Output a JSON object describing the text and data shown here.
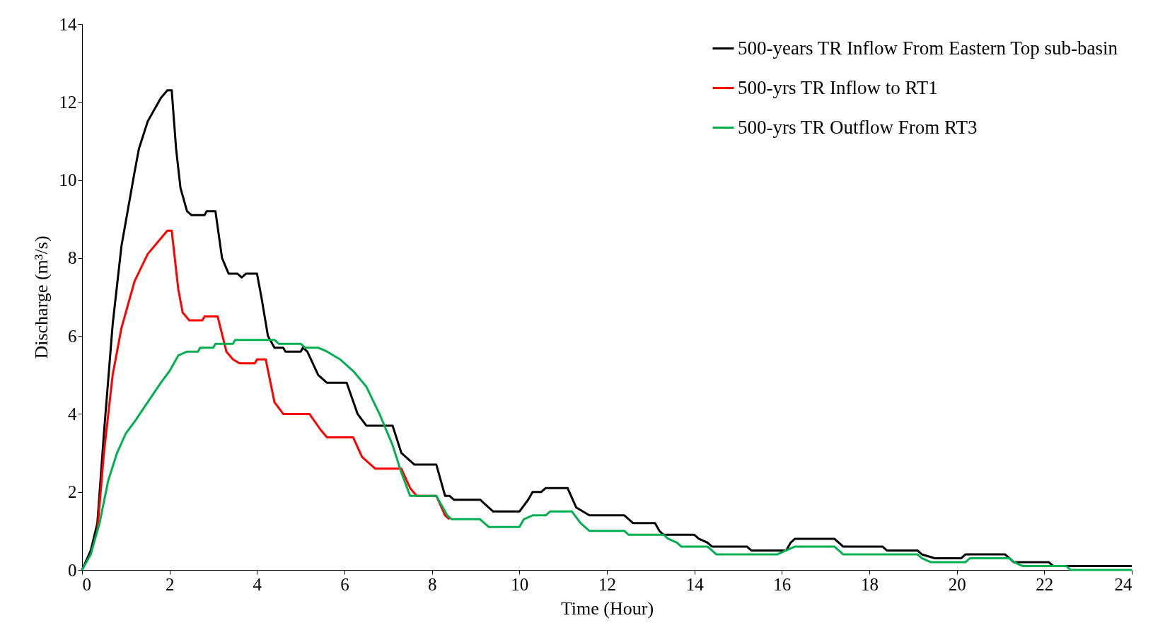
{
  "chart_data": {
    "type": "line",
    "xlabel": "Time (Hour)",
    "ylabel": "Discharge (m³/s)",
    "xlim": [
      0,
      24
    ],
    "xticks": [
      0,
      2,
      4,
      6,
      8,
      10,
      12,
      14,
      16,
      18,
      20,
      22,
      24
    ],
    "ylim": [
      0,
      14
    ],
    "yticks": [
      0,
      2,
      4,
      6,
      8,
      10,
      12,
      14
    ],
    "grid": false,
    "legend": "top right",
    "marker": "none",
    "line_style": "solid",
    "series": [
      {
        "name": "500-years TR Inflow From Eastern Top sub-basin",
        "color": "#000000",
        "x": [
          0,
          0.2,
          0.35,
          0.5,
          0.7,
          0.9,
          1.2,
          1.3,
          1.5,
          1.8,
          1.95,
          2.05,
          2.15,
          2.25,
          2.4,
          2.5,
          2.8,
          2.85,
          3.05,
          3.2,
          3.35,
          3.55,
          3.65,
          3.75,
          4.0,
          4.1,
          4.25,
          4.4,
          4.6,
          4.65,
          5.0,
          5.05,
          5.15,
          5.4,
          5.6,
          6.05,
          6.3,
          6.5,
          7.1,
          7.3,
          7.5,
          7.6,
          8.1,
          8.3,
          8.4,
          8.5,
          9.1,
          9.3,
          9.4,
          10.0,
          10.2,
          10.3,
          10.5,
          10.6,
          11.1,
          11.3,
          11.45,
          11.6,
          12.4,
          12.5,
          12.6,
          13.1,
          13.2,
          13.3,
          14.0,
          14.1,
          14.3,
          14.4,
          15.2,
          15.3,
          16.1,
          16.2,
          16.3,
          17.2,
          17.3,
          17.4,
          18.3,
          18.4,
          19.1,
          19.2,
          19.5,
          20.1,
          20.2,
          21.1,
          21.2,
          21.3,
          22.1,
          22.2,
          24
        ],
        "values": [
          0,
          0.5,
          1.2,
          3.5,
          6.3,
          8.3,
          10.2,
          10.8,
          11.5,
          12.1,
          12.3,
          12.3,
          10.8,
          9.8,
          9.2,
          9.1,
          9.1,
          9.2,
          9.2,
          8.0,
          7.6,
          7.6,
          7.5,
          7.6,
          7.6,
          7.0,
          6.0,
          5.7,
          5.7,
          5.6,
          5.6,
          5.7,
          5.6,
          5.0,
          4.8,
          4.8,
          4.0,
          3.7,
          3.7,
          3.0,
          2.8,
          2.7,
          2.7,
          1.9,
          1.9,
          1.8,
          1.8,
          1.6,
          1.5,
          1.5,
          1.8,
          2.0,
          2.0,
          2.1,
          2.1,
          1.6,
          1.5,
          1.4,
          1.4,
          1.3,
          1.2,
          1.2,
          1.0,
          0.9,
          0.9,
          0.8,
          0.7,
          0.6,
          0.6,
          0.5,
          0.5,
          0.7,
          0.8,
          0.8,
          0.7,
          0.6,
          0.6,
          0.5,
          0.5,
          0.4,
          0.3,
          0.3,
          0.4,
          0.4,
          0.3,
          0.2,
          0.2,
          0.1,
          0.1
        ]
      },
      {
        "name": "500-yrs TR Inflow to RT1",
        "color": "#ff0000",
        "x": [
          0.35,
          0.5,
          0.7,
          0.9,
          1.2,
          1.5,
          1.8,
          1.95,
          2.05,
          2.2,
          2.3,
          2.45,
          2.75,
          2.8,
          3.1,
          3.3,
          3.45,
          3.6,
          3.95,
          4.0,
          4.2,
          4.4,
          4.6,
          5.2,
          5.45,
          5.6,
          6.2,
          6.4,
          6.6,
          6.7,
          7.3,
          7.5,
          7.65,
          8.1,
          8.3,
          8.4
        ],
        "values": [
          1.0,
          3.0,
          5.0,
          6.2,
          7.4,
          8.1,
          8.5,
          8.7,
          8.7,
          7.2,
          6.6,
          6.4,
          6.4,
          6.5,
          6.5,
          5.6,
          5.4,
          5.3,
          5.3,
          5.4,
          5.4,
          4.3,
          4.0,
          4.0,
          3.6,
          3.4,
          3.4,
          2.9,
          2.7,
          2.6,
          2.6,
          2.1,
          1.9,
          1.9,
          1.4,
          1.3
        ]
      },
      {
        "name": "500-yrs TR Outflow From RT3",
        "color": "#00b050",
        "x": [
          0,
          0.2,
          0.4,
          0.6,
          0.8,
          1.0,
          1.2,
          1.5,
          1.8,
          2.0,
          2.2,
          2.4,
          2.65,
          2.7,
          3.0,
          3.05,
          3.45,
          3.5,
          4.4,
          4.5,
          5.0,
          5.1,
          5.4,
          5.6,
          5.9,
          6.2,
          6.5,
          6.8,
          7.1,
          7.3,
          7.5,
          8.1,
          8.35,
          8.45,
          9.1,
          9.2,
          9.3,
          10.0,
          10.1,
          10.3,
          10.6,
          10.7,
          11.2,
          11.4,
          11.5,
          11.6,
          12.4,
          12.5,
          13.3,
          13.4,
          13.6,
          13.7,
          14.3,
          14.4,
          14.5,
          15.9,
          16.1,
          16.3,
          17.2,
          17.3,
          17.4,
          19.1,
          19.2,
          19.4,
          20.2,
          20.3,
          21.2,
          21.3,
          21.5,
          22.5,
          22.6,
          24
        ],
        "values": [
          0,
          0.4,
          1.2,
          2.3,
          3.0,
          3.5,
          3.8,
          4.3,
          4.8,
          5.1,
          5.5,
          5.6,
          5.6,
          5.7,
          5.7,
          5.8,
          5.8,
          5.9,
          5.9,
          5.8,
          5.8,
          5.7,
          5.7,
          5.6,
          5.4,
          5.1,
          4.7,
          4.0,
          3.2,
          2.5,
          1.9,
          1.9,
          1.4,
          1.3,
          1.3,
          1.2,
          1.1,
          1.1,
          1.3,
          1.4,
          1.4,
          1.5,
          1.5,
          1.2,
          1.1,
          1.0,
          1.0,
          0.9,
          0.9,
          0.8,
          0.7,
          0.6,
          0.6,
          0.5,
          0.4,
          0.4,
          0.5,
          0.6,
          0.6,
          0.5,
          0.4,
          0.4,
          0.3,
          0.2,
          0.2,
          0.3,
          0.3,
          0.2,
          0.1,
          0.1,
          0,
          0
        ]
      }
    ]
  }
}
